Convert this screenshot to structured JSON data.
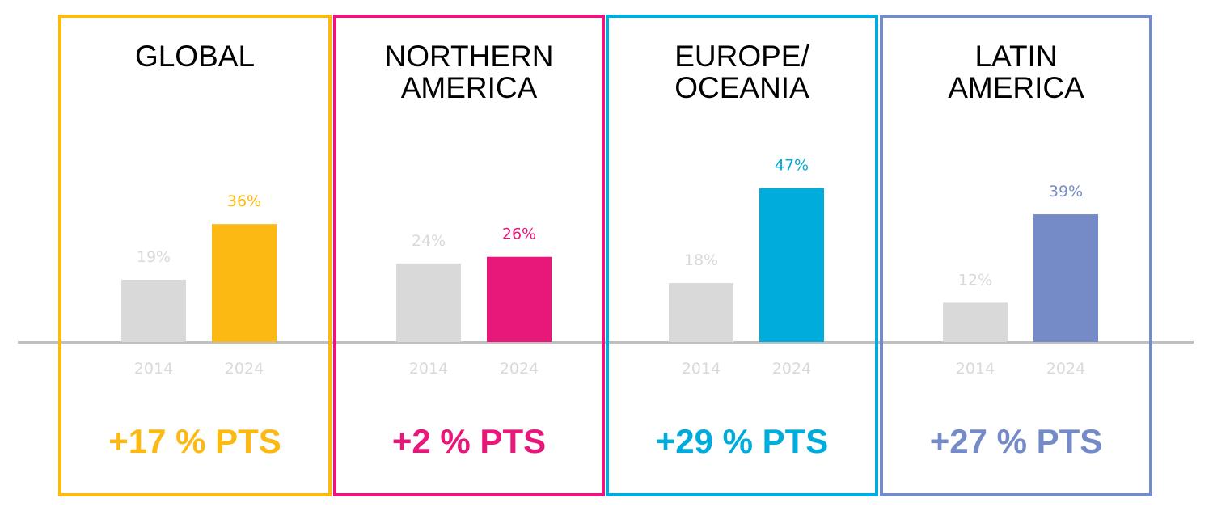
{
  "chart_data": [
    {
      "type": "bar",
      "title_lines": [
        "GLOBAL"
      ],
      "categories": [
        "2014",
        "2024"
      ],
      "values": [
        19,
        36
      ],
      "value_labels": [
        "19%",
        "36%"
      ],
      "change_label": "+17 % PTS",
      "accent_color": "#FDB913",
      "base_color": "#D9D9D9",
      "ylim": [
        0,
        100
      ]
    },
    {
      "type": "bar",
      "title_lines": [
        "NORTHERN",
        "AMERICA"
      ],
      "categories": [
        "2014",
        "2024"
      ],
      "values": [
        24,
        26
      ],
      "value_labels": [
        "24%",
        "26%"
      ],
      "change_label": "+2 % PTS",
      "accent_color": "#E8177A",
      "base_color": "#D9D9D9",
      "ylim": [
        0,
        100
      ]
    },
    {
      "type": "bar",
      "title_lines": [
        "EUROPE/",
        "OCEANIA"
      ],
      "categories": [
        "2014",
        "2024"
      ],
      "values": [
        18,
        47
      ],
      "value_labels": [
        "18%",
        "47%"
      ],
      "change_label": "+29 % PTS",
      "accent_color": "#00ACDB",
      "base_color": "#D9D9D9",
      "ylim": [
        0,
        100
      ]
    },
    {
      "type": "bar",
      "title_lines": [
        "LATIN",
        "AMERICA"
      ],
      "categories": [
        "2014",
        "2024"
      ],
      "values": [
        12,
        39
      ],
      "value_labels": [
        "12%",
        "39%"
      ],
      "change_label": "+27 % PTS",
      "accent_color": "#758BC8",
      "base_color": "#D9D9D9",
      "ylim": [
        0,
        100
      ]
    }
  ],
  "baseline_color": "#BFBFBF",
  "muted_text_color": "#D9D9D9"
}
